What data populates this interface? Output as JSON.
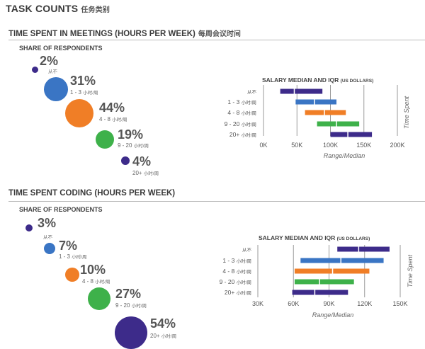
{
  "page": {
    "title": "TASK COUNTS",
    "title_zh": "任务类别"
  },
  "colors": {
    "purple": "#3d2b8a",
    "blue": "#3a75c4",
    "orange": "#f07e26",
    "green": "#3eb14a",
    "grid": "#9a9a9a"
  },
  "chart_data": [
    {
      "type": "bar",
      "section_title": "TIME SPENT IN MEETINGS (HOURS PER WEEK)",
      "section_title_zh": "每周会议时间",
      "share_title": "SHARE OF RESPONDENTS",
      "categories": [
        {
          "label": "",
          "label_zh": "从不",
          "share": "2%",
          "color": "purple",
          "q1": 25,
          "median": 46,
          "q3": 88
        },
        {
          "label": "1 - 3",
          "label_zh": "小时/周",
          "share": "31%",
          "color": "blue",
          "q1": 48,
          "median": 76,
          "q3": 109
        },
        {
          "label": "4 - 8",
          "label_zh": "小时/周",
          "share": "44%",
          "color": "orange",
          "q1": 62,
          "median": 91,
          "q3": 123
        },
        {
          "label": "9 - 20",
          "label_zh": "小时/周",
          "share": "19%",
          "color": "green",
          "q1": 80,
          "median": 109,
          "q3": 143
        },
        {
          "label": "20+",
          "label_zh": "小时/周",
          "share": "4%",
          "color": "purple",
          "q1": 100,
          "median": 126,
          "q3": 162
        }
      ],
      "salary_title": "SALARY MEDIAN AND IQR",
      "salary_units": "(US DOLLARS)",
      "xlabel": "Range/Median",
      "ylabel": "Time Spent",
      "xlim": [
        0,
        200
      ],
      "xticks": [
        0,
        50,
        100,
        150,
        200
      ],
      "xtick_labels": [
        "0K",
        "50K",
        "100K",
        "150K",
        "200K"
      ]
    },
    {
      "type": "bar",
      "section_title": "TIME SPENT CODING (HOURS PER WEEK)",
      "share_title": "SHARE OF RESPONDENTS",
      "categories": [
        {
          "label": "",
          "label_zh": "从不",
          "share": "3%",
          "color": "purple",
          "q1": 97,
          "median": 115,
          "q3": 141
        },
        {
          "label": "1 - 3",
          "label_zh": "小时/周",
          "share": "7%",
          "color": "blue",
          "q1": 66,
          "median": 100,
          "q3": 136
        },
        {
          "label": "4 - 8",
          "label_zh": "小时/周",
          "share": "10%",
          "color": "orange",
          "q1": 61,
          "median": 93,
          "q3": 124
        },
        {
          "label": "9 - 20",
          "label_zh": "小时/周",
          "share": "27%",
          "color": "green",
          "q1": 61,
          "median": 82,
          "q3": 111
        },
        {
          "label": "20+",
          "label_zh": "小时/周",
          "share": "54%",
          "color": "purple",
          "q1": 59,
          "median": 78,
          "q3": 106
        }
      ],
      "salary_title": "SALARY MEDIAN AND IQR",
      "salary_units": "(US DOLLARS)",
      "xlabel": "Range/Median",
      "ylabel": "Time Spent",
      "xlim": [
        30,
        150
      ],
      "xticks": [
        30,
        60,
        90,
        120,
        150
      ],
      "xtick_labels": [
        "30K",
        "60K",
        "90K",
        "120K",
        "150K"
      ]
    }
  ]
}
